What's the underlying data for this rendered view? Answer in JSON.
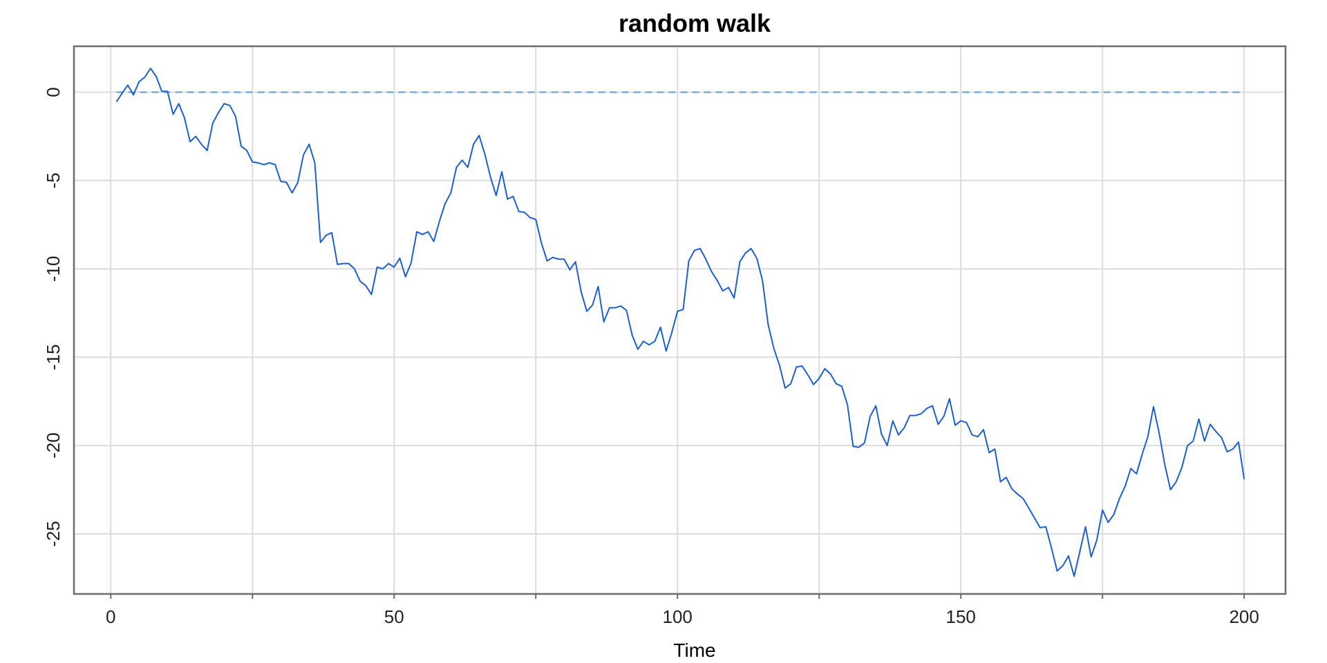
{
  "chart_data": {
    "type": "line",
    "title": "random walk",
    "xlabel": "Time",
    "ylabel": "",
    "xlim": [
      -6.5,
      207.3
    ],
    "ylim": [
      -28.4,
      2.6
    ],
    "x_ticks": [
      0,
      50,
      100,
      150,
      200
    ],
    "x_minor_ticks": [
      25,
      75,
      125,
      175
    ],
    "y_ticks": [
      0,
      -5,
      -10,
      -15,
      -20,
      -25
    ],
    "grid": true,
    "reference_line": {
      "y": 0,
      "x_from": 1,
      "x_to": 200,
      "style": "dashed",
      "color": "#5b9bd5"
    },
    "series": [
      {
        "color": "#1a5fcf",
        "x_start": 1,
        "values": [
          -0.55,
          -0.05,
          0.4,
          -0.15,
          0.6,
          0.85,
          1.35,
          0.9,
          0.05,
          0.05,
          -1.25,
          -0.65,
          -1.45,
          -2.8,
          -2.5,
          -2.95,
          -3.3,
          -1.75,
          -1.15,
          -0.65,
          -0.75,
          -1.35,
          -3.05,
          -3.3,
          -3.95,
          -4.0,
          -4.1,
          -4.0,
          -4.1,
          -5.05,
          -5.1,
          -5.7,
          -5.1,
          -3.55,
          -2.95,
          -4.0,
          -8.5,
          -8.1,
          -7.95,
          -9.75,
          -9.7,
          -9.7,
          -10.0,
          -10.7,
          -10.95,
          -11.45,
          -9.9,
          -10.0,
          -9.7,
          -9.9,
          -9.4,
          -10.45,
          -9.65,
          -7.9,
          -8.05,
          -7.9,
          -8.45,
          -7.3,
          -6.3,
          -5.7,
          -4.25,
          -3.85,
          -4.25,
          -2.95,
          -2.45,
          -3.5,
          -4.8,
          -5.85,
          -4.5,
          -6.05,
          -5.9,
          -6.75,
          -6.8,
          -7.1,
          -7.2,
          -8.55,
          -9.55,
          -9.35,
          -9.45,
          -9.45,
          -10.05,
          -9.6,
          -11.3,
          -12.4,
          -12.05,
          -11.0,
          -13.0,
          -12.2,
          -12.2,
          -12.1,
          -12.35,
          -13.75,
          -14.55,
          -14.1,
          -14.3,
          -14.1,
          -13.3,
          -14.65,
          -13.6,
          -12.4,
          -12.3,
          -9.55,
          -8.95,
          -8.85,
          -9.45,
          -10.15,
          -10.65,
          -11.25,
          -11.05,
          -11.65,
          -9.6,
          -9.1,
          -8.85,
          -9.4,
          -10.65,
          -13.15,
          -14.5,
          -15.45,
          -16.75,
          -16.5,
          -15.55,
          -15.5,
          -16.0,
          -16.55,
          -16.2,
          -15.65,
          -15.95,
          -16.5,
          -16.65,
          -17.7,
          -20.05,
          -20.1,
          -19.85,
          -18.35,
          -17.75,
          -19.35,
          -20.0,
          -18.6,
          -19.4,
          -19.0,
          -18.3,
          -18.3,
          -18.2,
          -17.9,
          -17.75,
          -18.8,
          -18.35,
          -17.35,
          -18.85,
          -18.6,
          -18.7,
          -19.4,
          -19.5,
          -19.1,
          -20.4,
          -20.2,
          -22.05,
          -21.8,
          -22.45,
          -22.75,
          -23.0,
          -23.55,
          -24.1,
          -24.65,
          -24.6,
          -25.8,
          -27.1,
          -26.8,
          -26.25,
          -27.4,
          -26.0,
          -24.6,
          -26.3,
          -25.35,
          -23.65,
          -24.35,
          -23.9,
          -23.0,
          -22.3,
          -21.3,
          -21.6,
          -20.5,
          -19.5,
          -17.8,
          -19.3,
          -21.1,
          -22.5,
          -22.05,
          -21.25,
          -20.0,
          -19.75,
          -18.5,
          -19.75,
          -18.8,
          -19.2,
          -19.55,
          -20.35,
          -20.2,
          -19.8,
          -21.9
        ]
      }
    ]
  }
}
